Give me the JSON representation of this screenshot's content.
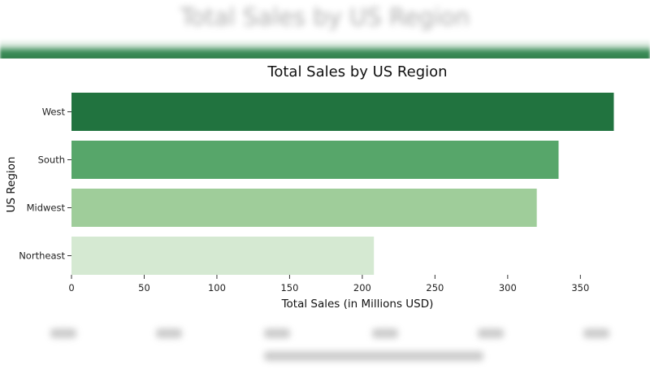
{
  "chart_data": {
    "type": "bar",
    "orientation": "horizontal",
    "title": "Total Sales by US Region",
    "xlabel": "Total Sales (in Millions USD)",
    "ylabel": "US Region",
    "categories": [
      "West",
      "South",
      "Midwest",
      "Northeast"
    ],
    "values": [
      373,
      335,
      320,
      208
    ],
    "xlim": [
      0,
      380
    ],
    "xticks": [
      0,
      50,
      100,
      150,
      200,
      250,
      300,
      350
    ],
    "grid": false,
    "legend": "none",
    "colors": [
      "#21733f",
      "#57a66a",
      "#9fcd9a",
      "#d5e9d2"
    ]
  }
}
